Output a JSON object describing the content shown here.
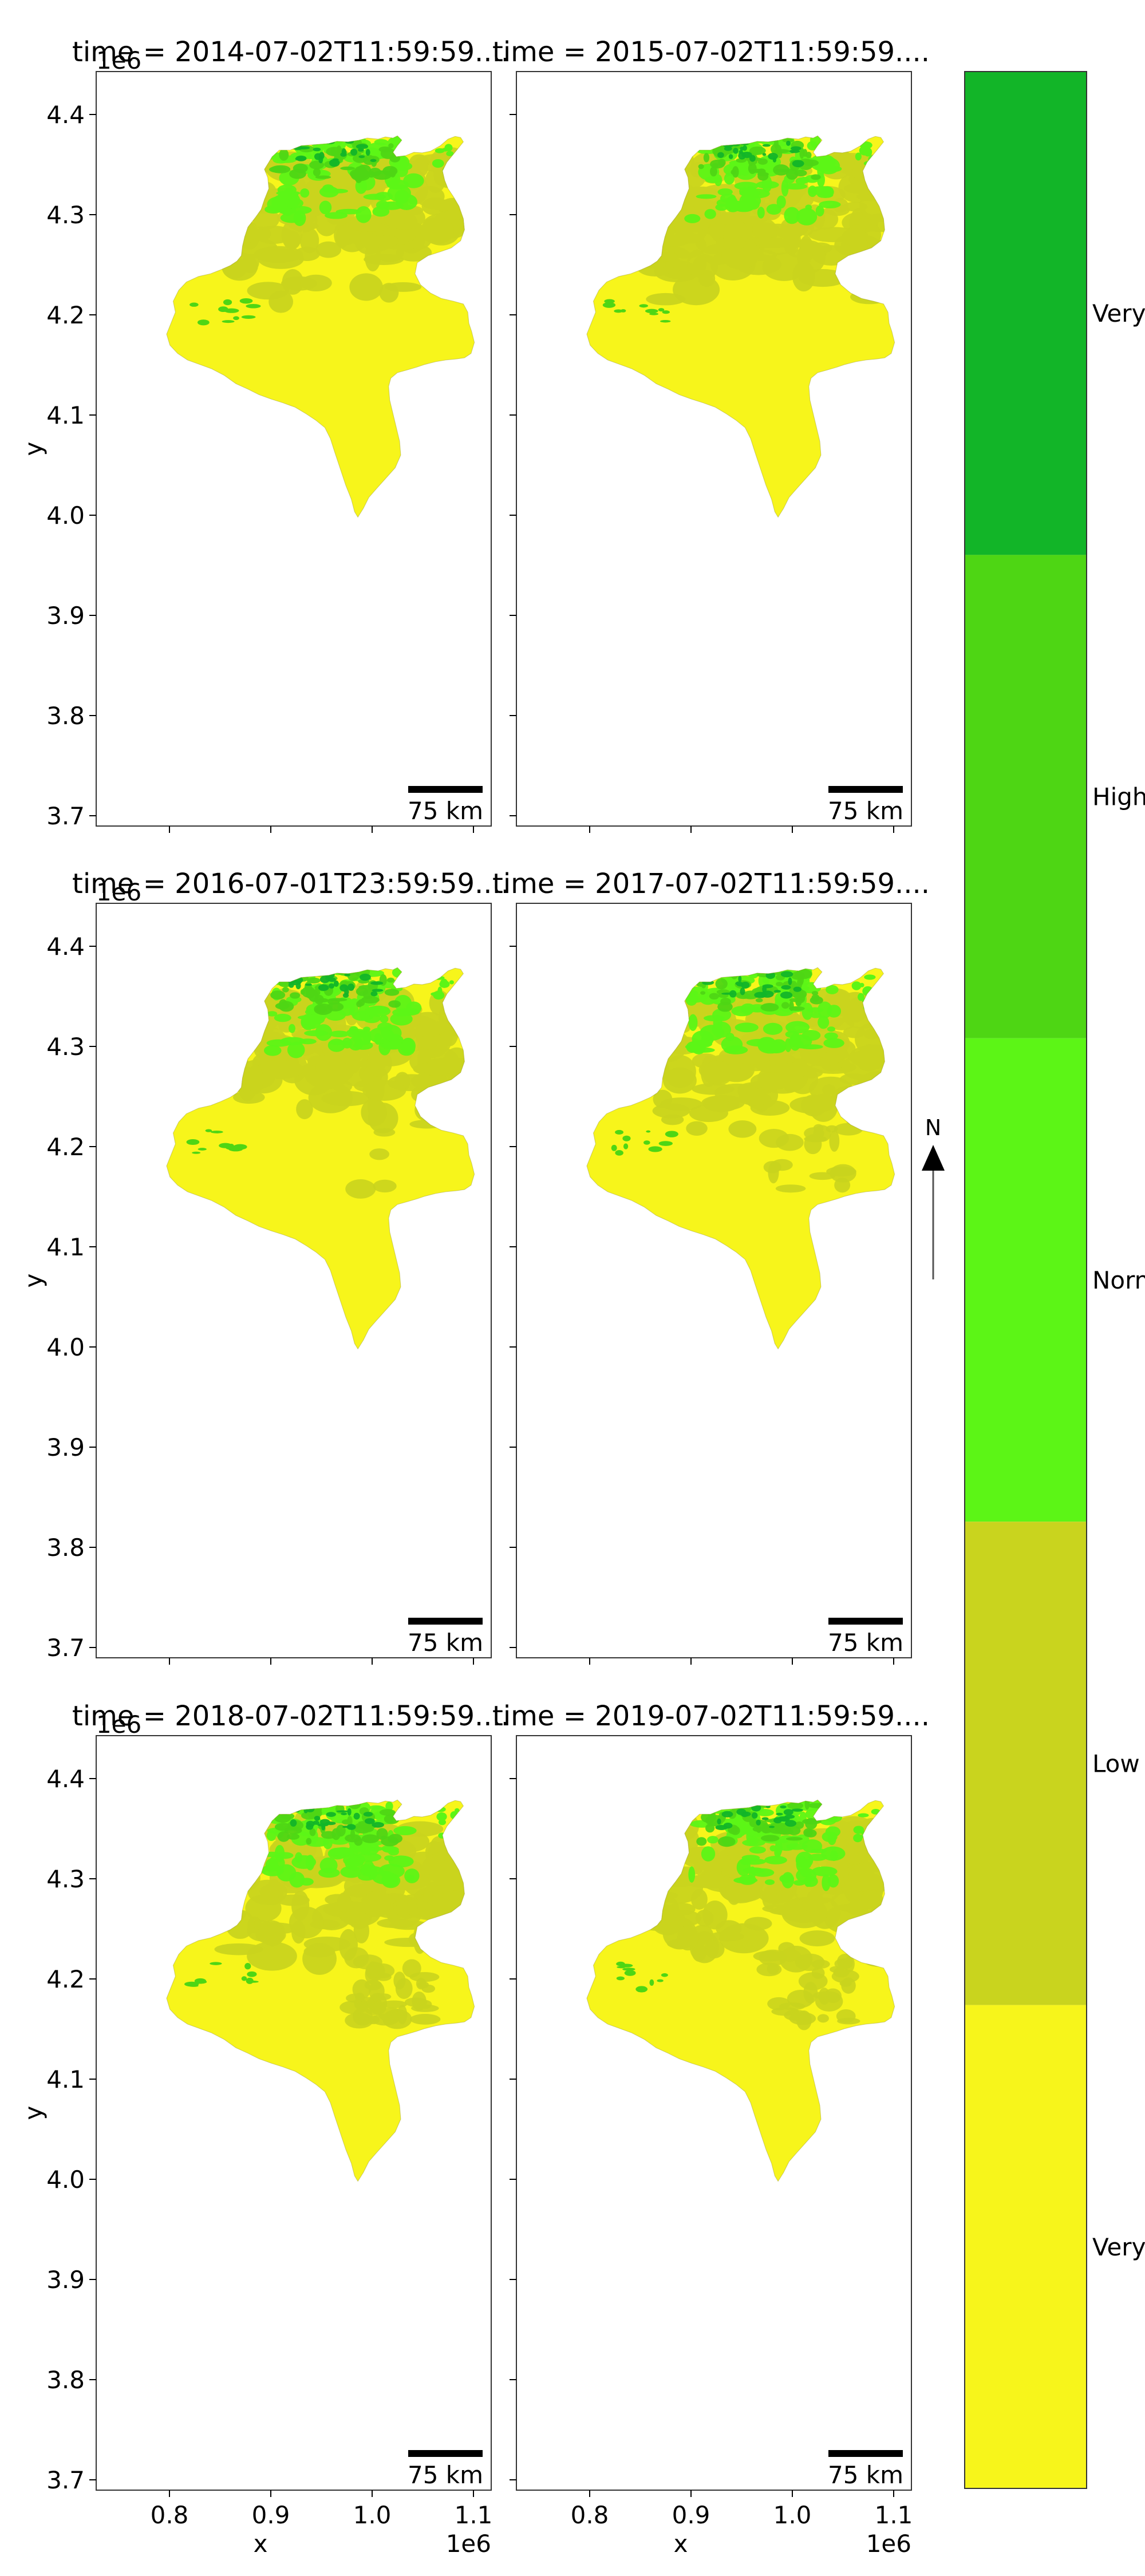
{
  "figure": {
    "panels": [
      {
        "title": "time = 2014-07-02T11:59:59....",
        "offset_label": "1e6",
        "ylabel": "y",
        "xlabel": "",
        "x_offset_label": "",
        "scalebar_label": "75 km",
        "variant": 0
      },
      {
        "title": "time = 2015-07-02T11:59:59....",
        "offset_label": "",
        "ylabel": "",
        "xlabel": "",
        "x_offset_label": "",
        "scalebar_label": "75 km",
        "variant": 1
      },
      {
        "title": "time = 2016-07-01T23:59:59....",
        "offset_label": "1e6",
        "ylabel": "y",
        "xlabel": "",
        "x_offset_label": "",
        "scalebar_label": "75 km",
        "variant": 2
      },
      {
        "title": "time = 2017-07-02T11:59:59....",
        "offset_label": "",
        "ylabel": "",
        "xlabel": "",
        "x_offset_label": "",
        "scalebar_label": "75 km",
        "variant": 3
      },
      {
        "title": "time = 2018-07-02T11:59:59....",
        "offset_label": "1e6",
        "ylabel": "y",
        "xlabel": "x",
        "x_offset_label": "1e6",
        "scalebar_label": "75 km",
        "variant": 4
      },
      {
        "title": "time = 2019-07-02T11:59:59....",
        "offset_label": "",
        "ylabel": "",
        "xlabel": "x",
        "x_offset_label": "1e6",
        "scalebar_label": "75 km",
        "variant": 5
      }
    ],
    "y_ticks": [
      "4.4",
      "4.3",
      "4.2",
      "4.1",
      "4.0",
      "3.9",
      "3.8",
      "3.7"
    ],
    "x_ticks": [
      "0.8",
      "0.9",
      "1.0",
      "1.1"
    ],
    "north_arrow": {
      "label": "N"
    },
    "legend": {
      "classes": [
        {
          "label": "Very",
          "color": "#12b528"
        },
        {
          "label": "High",
          "color": "#4ed614"
        },
        {
          "label": "Norm",
          "color": "#5cf516"
        },
        {
          "label": "Low",
          "color": "#c9d41e"
        },
        {
          "label": "Very",
          "color": "#f7f51b"
        }
      ]
    },
    "colors": {
      "very_low": "#f7f51b",
      "low": "#c9d41e",
      "normal": "#5cf516",
      "high": "#4ed614",
      "very_high": "#12b528"
    }
  }
}
